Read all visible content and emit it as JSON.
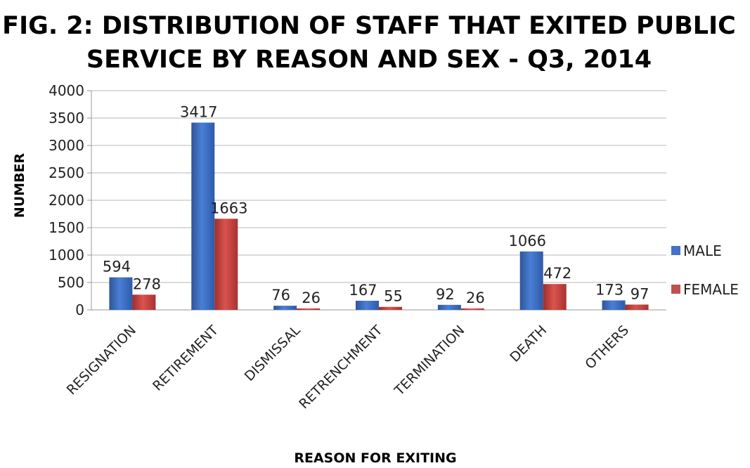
{
  "chart_data": {
    "type": "bar",
    "title_lines": [
      "FIG. 2: DISTRIBUTION OF STAFF THAT EXITED PUBLIC",
      "SERVICE BY REASON AND SEX - Q3, 2014"
    ],
    "xlabel": "REASON FOR EXITING",
    "ylabel": "NUMBER",
    "categories": [
      "RESIGNATION",
      "RETIREMENT",
      "DISMISSAL",
      "RETRENCHMENT",
      "TERMINATION",
      "DEATH",
      "OTHERS"
    ],
    "series": [
      {
        "name": "MALE",
        "values": [
          594,
          3417,
          76,
          167,
          92,
          1066,
          173
        ],
        "color": "#4472C4"
      },
      {
        "name": "FEMALE",
        "values": [
          278,
          1663,
          26,
          55,
          26,
          472,
          97
        ],
        "color": "#C0504D"
      }
    ],
    "ylim": [
      0,
      4000
    ],
    "yticks": [
      0,
      500,
      1000,
      1500,
      2000,
      2500,
      3000,
      3500,
      4000
    ],
    "grid": true,
    "legend": "right"
  }
}
